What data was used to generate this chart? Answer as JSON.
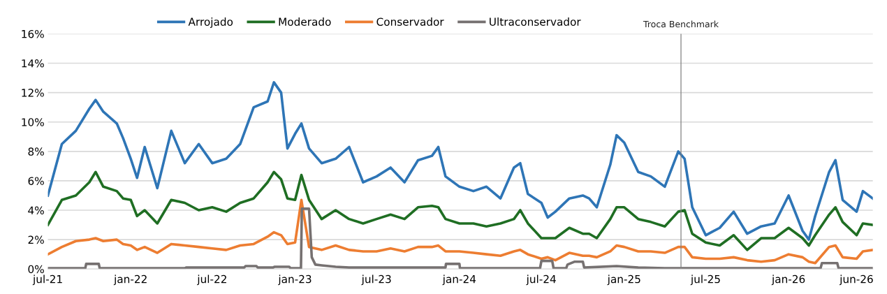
{
  "chart_data": {
    "type": "line",
    "ylim": [
      0,
      16
    ],
    "yticks": [
      {
        "value": 0,
        "label": "0%"
      },
      {
        "value": 2,
        "label": "2%"
      },
      {
        "value": 4,
        "label": "4%"
      },
      {
        "value": 6,
        "label": "6%"
      },
      {
        "value": 8,
        "label": "8%"
      },
      {
        "value": 10,
        "label": "10%"
      },
      {
        "value": 12,
        "label": "12%"
      },
      {
        "value": 14,
        "label": "14%"
      },
      {
        "value": 16,
        "label": "16%"
      }
    ],
    "xlim": [
      "2021-07-01",
      "2026-07-07"
    ],
    "xticks": [
      {
        "value": "2021-07-01",
        "label": "jul-21"
      },
      {
        "value": "2022-01-01",
        "label": "jan-22"
      },
      {
        "value": "2022-07-01",
        "label": "jul-22"
      },
      {
        "value": "2023-01-01",
        "label": "jan-23"
      },
      {
        "value": "2023-07-01",
        "label": "jul-23"
      },
      {
        "value": "2024-01-01",
        "label": "jan-24"
      },
      {
        "value": "2024-07-01",
        "label": "jul-24"
      },
      {
        "value": "2025-01-01",
        "label": "jan-25"
      },
      {
        "value": "2025-07-01",
        "label": "jul-25"
      },
      {
        "value": "2026-01-01",
        "label": "jan-26"
      },
      {
        "value": "2026-06-01",
        "label": "jun-26"
      }
    ],
    "grid": "y",
    "legend": "top",
    "marker": "none",
    "line_style": "solid",
    "x": [
      "2021-07-01",
      "2021-08-01",
      "2021-09-01",
      "2021-10-01",
      "2021-10-15",
      "2021-11-01",
      "2021-12-01",
      "2021-12-15",
      "2022-01-01",
      "2022-01-15",
      "2022-02-01",
      "2022-03-01",
      "2022-04-01",
      "2022-05-01",
      "2022-06-01",
      "2022-07-01",
      "2022-08-01",
      "2022-09-01",
      "2022-10-01",
      "2022-11-01",
      "2022-11-15",
      "2022-12-01",
      "2022-12-15",
      "2023-01-01",
      "2023-01-15",
      "2023-02-01",
      "2023-03-01",
      "2023-04-01",
      "2023-05-01",
      "2023-06-01",
      "2023-07-01",
      "2023-08-01",
      "2023-09-01",
      "2023-10-01",
      "2023-11-01",
      "2023-11-15",
      "2023-12-01",
      "2024-01-01",
      "2024-02-01",
      "2024-03-01",
      "2024-04-01",
      "2024-05-01",
      "2024-05-15",
      "2024-06-01",
      "2024-07-01",
      "2024-07-15",
      "2024-08-01",
      "2024-09-01",
      "2024-10-01",
      "2024-10-15",
      "2024-11-01",
      "2024-12-01",
      "2024-12-15",
      "2025-01-01",
      "2025-02-01",
      "2025-03-01",
      "2025-04-01",
      "2025-05-01",
      "2025-05-15",
      "2025-06-01",
      "2025-07-01",
      "2025-08-01",
      "2025-09-01",
      "2025-10-01",
      "2025-11-01",
      "2025-12-01",
      "2026-01-01",
      "2026-02-01",
      "2026-02-15",
      "2026-03-01",
      "2026-04-01",
      "2026-04-15",
      "2026-05-01",
      "2026-06-01",
      "2026-06-15",
      "2026-07-07"
    ],
    "series": [
      {
        "name": "Arrojado",
        "color": "#2e75b6",
        "values": [
          5.0,
          8.5,
          9.4,
          10.9,
          11.5,
          10.7,
          9.9,
          8.9,
          7.5,
          6.2,
          8.3,
          5.5,
          9.4,
          7.2,
          8.5,
          7.2,
          7.5,
          8.5,
          11.0,
          11.4,
          12.7,
          12.0,
          8.2,
          9.2,
          9.9,
          8.2,
          7.2,
          7.5,
          8.3,
          5.9,
          6.3,
          6.9,
          5.9,
          7.4,
          7.7,
          8.3,
          6.3,
          5.6,
          5.3,
          5.6,
          4.8,
          6.9,
          7.2,
          5.1,
          4.5,
          3.5,
          3.9,
          4.8,
          5.0,
          4.8,
          4.2,
          7.1,
          9.1,
          8.6,
          6.6,
          6.3,
          5.6,
          8.0,
          7.5,
          4.2,
          2.3,
          2.8,
          3.9,
          2.4,
          2.9,
          3.1,
          5.0,
          2.6,
          2.0,
          3.6,
          6.6,
          7.4,
          4.7,
          3.9,
          5.3,
          4.8
        ]
      },
      {
        "name": "Moderado",
        "color": "#1f6e23",
        "values": [
          3.0,
          4.7,
          5.0,
          5.9,
          6.6,
          5.6,
          5.3,
          4.8,
          4.7,
          3.6,
          4.0,
          3.1,
          4.7,
          4.5,
          4.0,
          4.2,
          3.9,
          4.5,
          4.8,
          5.9,
          6.6,
          6.1,
          4.8,
          4.7,
          6.4,
          4.7,
          3.4,
          4.0,
          3.4,
          3.1,
          3.4,
          3.7,
          3.4,
          4.2,
          4.3,
          4.2,
          3.4,
          3.1,
          3.1,
          2.9,
          3.1,
          3.4,
          4.0,
          3.1,
          2.1,
          2.1,
          2.1,
          2.8,
          2.4,
          2.4,
          2.1,
          3.4,
          4.2,
          4.2,
          3.4,
          3.2,
          2.9,
          3.9,
          4.0,
          2.4,
          1.8,
          1.6,
          2.3,
          1.3,
          2.1,
          2.1,
          2.8,
          2.1,
          1.6,
          2.3,
          3.7,
          4.2,
          3.2,
          2.3,
          3.1,
          3.0
        ]
      },
      {
        "name": "Conservador",
        "color": "#ed7d31",
        "values": [
          1.0,
          1.5,
          1.9,
          2.0,
          2.1,
          1.9,
          2.0,
          1.7,
          1.6,
          1.3,
          1.5,
          1.1,
          1.7,
          1.6,
          1.5,
          1.4,
          1.3,
          1.6,
          1.7,
          2.2,
          2.5,
          2.3,
          1.7,
          1.8,
          4.7,
          1.5,
          1.3,
          1.6,
          1.3,
          1.2,
          1.2,
          1.4,
          1.2,
          1.5,
          1.5,
          1.6,
          1.2,
          1.2,
          1.1,
          1.0,
          0.9,
          1.2,
          1.3,
          1.0,
          0.7,
          0.8,
          0.6,
          1.1,
          0.9,
          0.9,
          0.8,
          1.2,
          1.6,
          1.5,
          1.2,
          1.2,
          1.1,
          1.5,
          1.5,
          0.8,
          0.7,
          0.7,
          0.8,
          0.6,
          0.5,
          0.6,
          1.0,
          0.8,
          0.5,
          0.4,
          1.5,
          1.6,
          0.8,
          0.7,
          1.2,
          1.3
        ]
      },
      {
        "name": "Ultraconservador",
        "color": "#767171",
        "x": [
          "2021-07-01",
          "2021-09-22",
          "2021-09-24",
          "2021-10-22",
          "2021-10-24",
          "2022-05-01",
          "2022-05-04",
          "2022-09-10",
          "2022-09-13",
          "2022-10-07",
          "2022-10-10",
          "2022-11-13",
          "2022-11-16",
          "2022-12-19",
          "2022-12-22",
          "2023-01-14",
          "2023-01-16",
          "2023-02-01",
          "2023-02-07",
          "2023-02-15",
          "2023-03-01",
          "2023-04-01",
          "2023-05-01",
          "2023-12-01",
          "2023-12-02",
          "2024-01-01",
          "2024-01-02",
          "2024-06-28",
          "2024-07-01",
          "2024-07-25",
          "2024-07-28",
          "2024-08-25",
          "2024-08-28",
          "2024-09-13",
          "2024-10-01",
          "2024-10-04",
          "2024-12-15",
          "2025-02-01",
          "2025-04-01",
          "2026-03-13",
          "2026-03-16",
          "2026-04-19",
          "2026-04-22",
          "2026-07-07"
        ],
        "values": [
          0.05,
          0.05,
          0.35,
          0.35,
          0.05,
          0.05,
          0.1,
          0.1,
          0.2,
          0.2,
          0.1,
          0.1,
          0.15,
          0.15,
          0.05,
          0.05,
          4.1,
          4.1,
          0.8,
          0.3,
          0.25,
          0.15,
          0.1,
          0.1,
          0.35,
          0.35,
          0.05,
          0.05,
          0.55,
          0.55,
          0.05,
          0.05,
          0.3,
          0.5,
          0.5,
          0.1,
          0.2,
          0.1,
          0.05,
          0.05,
          0.4,
          0.4,
          0.05,
          0.05
        ]
      }
    ],
    "ref_lines": [
      {
        "axis": "x",
        "value": "2025-05-07",
        "label": "Troca Benchmark",
        "color": "#808080",
        "line_style": "solid"
      }
    ]
  }
}
